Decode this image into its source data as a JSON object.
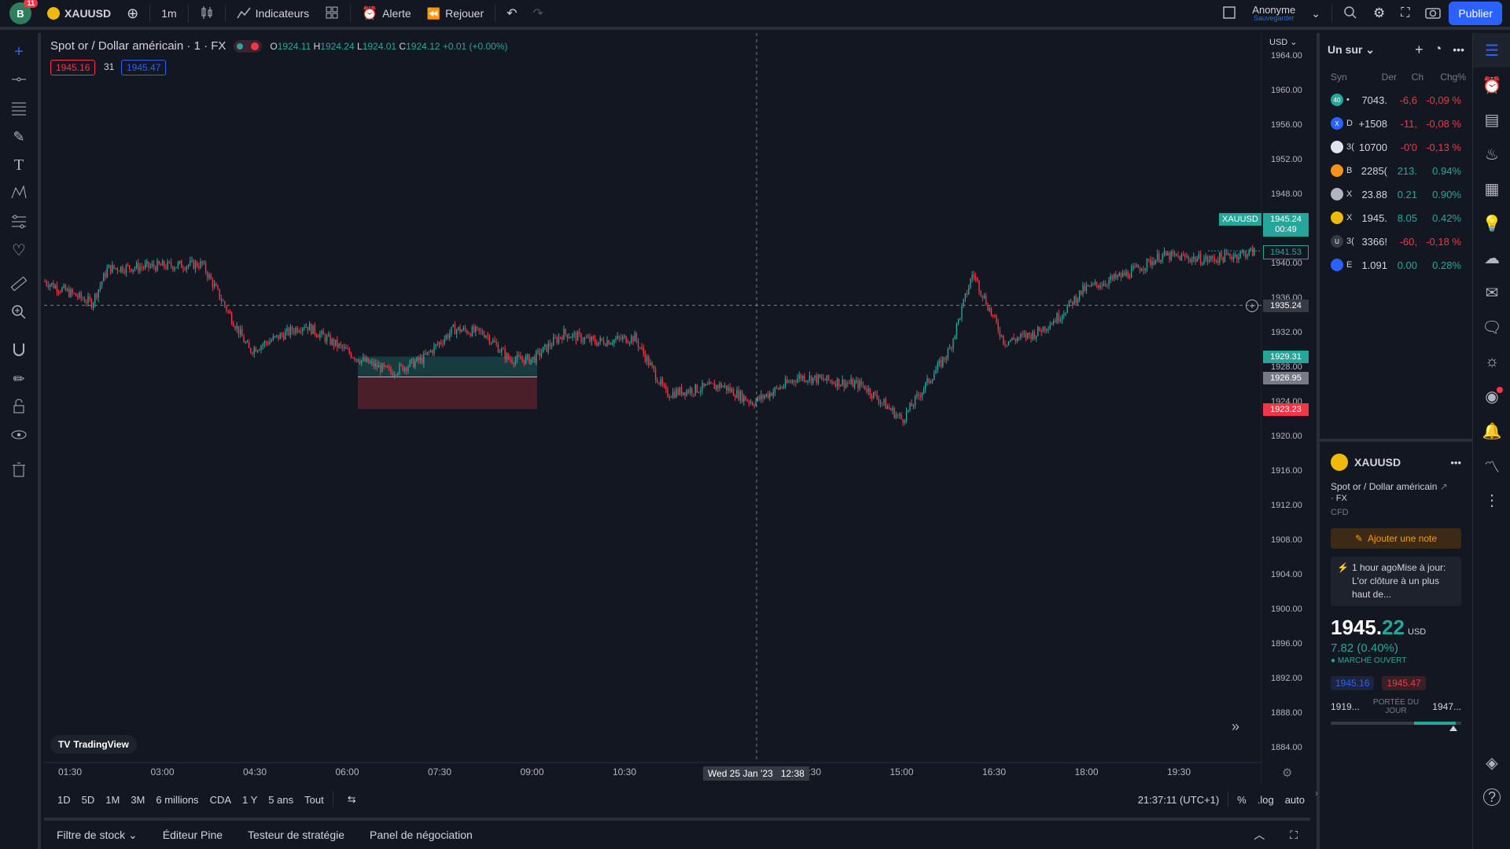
{
  "topbar": {
    "avatar_letter": "B",
    "avatar_badge": "11",
    "symbol": "XAUUSD",
    "interval": "1m",
    "indicators": "Indicateurs",
    "alert": "Alerte",
    "replay": "Rejouer",
    "user": "Anonyme",
    "save": "Sauvegarder",
    "publish": "Publier"
  },
  "legend": {
    "title": "Spot or / Dollar américain · 1 · FX",
    "o_label": "O",
    "o": "1924.11",
    "h_label": "H",
    "h": "1924.24",
    "l_label": "L",
    "l": "1924.01",
    "c_label": "C",
    "c": "1924.12",
    "change": "+0.01 (+0.00%)",
    "sell": "1945.16",
    "spread": "31",
    "buy": "1945.47"
  },
  "axis": {
    "currency": "USD",
    "price_ticks": [
      "1964.00",
      "1960.00",
      "1956.00",
      "1952.00",
      "1948.00",
      "1944.00",
      "1940.00",
      "1936.00",
      "1932.00",
      "1928.00",
      "1924.00",
      "1920.00",
      "1916.00",
      "1912.00",
      "1908.00",
      "1904.00",
      "1900.00",
      "1896.00",
      "1892.00",
      "1888.00",
      "1884.00"
    ],
    "time_ticks": [
      "01:30",
      "03:00",
      "04:30",
      "06:00",
      "07:30",
      "09:00",
      "10:30",
      "12:00",
      "13:30",
      "15:00",
      "16:30",
      "18:00",
      "19:30"
    ],
    "cursor_time": "Wed 25 Jan '23",
    "cursor_time2": "12:38",
    "symbol_tag": "XAUUSD",
    "last_price": "1945.24",
    "countdown": "00:49",
    "price_1941": "1941.53",
    "crosshair_price": "1935.24",
    "tp_price": "1929.31",
    "entry_price": "1926.95",
    "sl_price": "1923.23"
  },
  "watermark": "TradingView",
  "ranges": [
    "1D",
    "5D",
    "1M",
    "3M",
    "6 millions",
    "CDA",
    "1 Y",
    "5 ans",
    "Tout"
  ],
  "clock": "21:37:11 (UTC+1)",
  "scale_opts": [
    "%",
    ".log",
    "auto"
  ],
  "bottom_tabs": [
    "Filtre de stock",
    "Éditeur Pine",
    "Testeur de stratégie",
    "Panel de négociation"
  ],
  "watchlist": {
    "title": "Un sur",
    "cols": [
      "Syn",
      "Der",
      "Ch",
      "Chg%"
    ],
    "rows": [
      {
        "icon": "40",
        "sym": "•",
        "last": "7043.",
        "ch": "-6,6",
        "chg": "-0,09 %",
        "dir": "neg",
        "color": "#26a69a"
      },
      {
        "icon": "X",
        "sym": "D",
        "last": "+1508",
        "ch": "-11,",
        "chg": "-0,08 %",
        "dir": "neg",
        "color": "#2962ff"
      },
      {
        "icon": "",
        "sym": "3(",
        "last": "10700",
        "ch": "-0'0",
        "chg": "-0,13 %",
        "dir": "neg",
        "color": "#e0e3eb"
      },
      {
        "icon": "",
        "sym": "B",
        "last": "2285(",
        "ch": "213.",
        "chg": "0.94%",
        "dir": "pos",
        "color": "#f7931a"
      },
      {
        "icon": "",
        "sym": "X",
        "last": "23.88",
        "ch": "0.21",
        "chg": "0.90%",
        "dir": "pos",
        "color": "#b2b5be"
      },
      {
        "icon": "",
        "sym": "X",
        "last": "1945.",
        "ch": "8.05",
        "chg": "0.42%",
        "dir": "pos",
        "color": "#f0b90b"
      },
      {
        "icon": "U",
        "sym": "3(",
        "last": "3366!",
        "ch": "-60,",
        "chg": "-0,18 %",
        "dir": "neg",
        "color": "#363a45"
      },
      {
        "icon": "",
        "sym": "E",
        "last": "1.091",
        "ch": "0.00",
        "chg": "0.28%",
        "dir": "pos",
        "color": "#2962ff"
      }
    ]
  },
  "details": {
    "symbol": "XAUUSD",
    "name": "Spot or / Dollar américain",
    "exchange": "· FX",
    "type": "CFD",
    "add_note": "Ajouter une note",
    "news": "1 hour agoMise à jour: L'or clôture à un plus haut de...",
    "price_int": "1945.",
    "price_dec": "22",
    "currency": "USD",
    "change": "7.82  (0.40%)",
    "market": "● MARCHÉ OUVERT",
    "bid": "1945.16",
    "ask": "1945.47",
    "low": "1919...",
    "range_label": "PORTÉE DU JOUR",
    "high": "1947..."
  }
}
